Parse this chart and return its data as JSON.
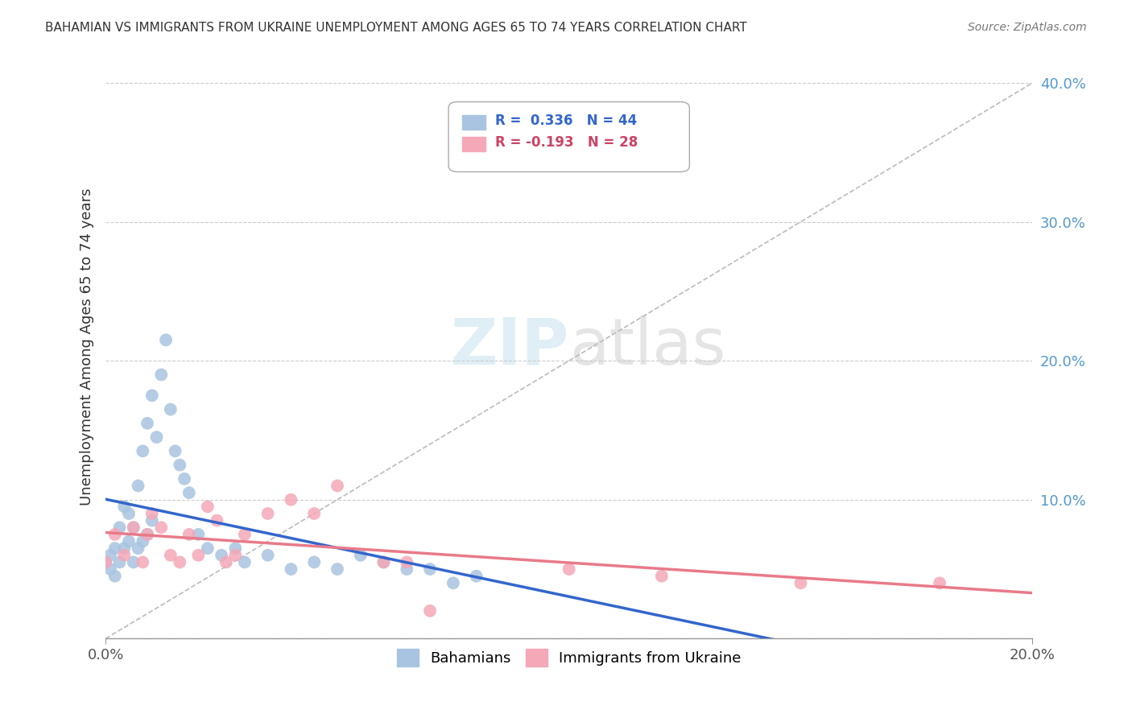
{
  "title": "BAHAMIAN VS IMMIGRANTS FROM UKRAINE UNEMPLOYMENT AMONG AGES 65 TO 74 YEARS CORRELATION CHART",
  "source": "Source: ZipAtlas.com",
  "ylabel": "Unemployment Among Ages 65 to 74 years",
  "bahamian_r": "0.336",
  "bahamian_n": "44",
  "ukraine_r": "-0.193",
  "ukraine_n": "28",
  "bahamian_color": "#a8c4e0",
  "ukraine_color": "#f4a8b8",
  "bahamian_line_color": "#3366cc",
  "ukraine_line_color": "#e87a8a",
  "watermark_zip": "ZIP",
  "watermark_atlas": "atlas",
  "xlim": [
    0.0,
    0.2
  ],
  "ylim": [
    0.0,
    0.42
  ],
  "bahamian_x": [
    0.0,
    0.001,
    0.001,
    0.002,
    0.002,
    0.003,
    0.003,
    0.004,
    0.004,
    0.005,
    0.005,
    0.006,
    0.006,
    0.007,
    0.007,
    0.008,
    0.008,
    0.009,
    0.009,
    0.01,
    0.01,
    0.011,
    0.012,
    0.013,
    0.014,
    0.015,
    0.016,
    0.017,
    0.018,
    0.02,
    0.022,
    0.025,
    0.028,
    0.03,
    0.035,
    0.04,
    0.045,
    0.05,
    0.055,
    0.06,
    0.065,
    0.07,
    0.075,
    0.08
  ],
  "bahamian_y": [
    0.055,
    0.06,
    0.05,
    0.065,
    0.045,
    0.055,
    0.08,
    0.065,
    0.095,
    0.07,
    0.09,
    0.055,
    0.08,
    0.065,
    0.11,
    0.07,
    0.135,
    0.075,
    0.155,
    0.085,
    0.175,
    0.145,
    0.19,
    0.215,
    0.165,
    0.135,
    0.125,
    0.115,
    0.105,
    0.075,
    0.065,
    0.06,
    0.065,
    0.055,
    0.06,
    0.05,
    0.055,
    0.05,
    0.06,
    0.055,
    0.05,
    0.05,
    0.04,
    0.045
  ],
  "ukraine_x": [
    0.0,
    0.002,
    0.004,
    0.006,
    0.008,
    0.009,
    0.01,
    0.012,
    0.014,
    0.016,
    0.018,
    0.02,
    0.022,
    0.024,
    0.026,
    0.028,
    0.03,
    0.035,
    0.04,
    0.045,
    0.05,
    0.06,
    0.065,
    0.07,
    0.1,
    0.12,
    0.15,
    0.18
  ],
  "ukraine_y": [
    0.055,
    0.075,
    0.06,
    0.08,
    0.055,
    0.075,
    0.09,
    0.08,
    0.06,
    0.055,
    0.075,
    0.06,
    0.095,
    0.085,
    0.055,
    0.06,
    0.075,
    0.09,
    0.1,
    0.09,
    0.11,
    0.055,
    0.055,
    0.02,
    0.05,
    0.045,
    0.04,
    0.04
  ]
}
